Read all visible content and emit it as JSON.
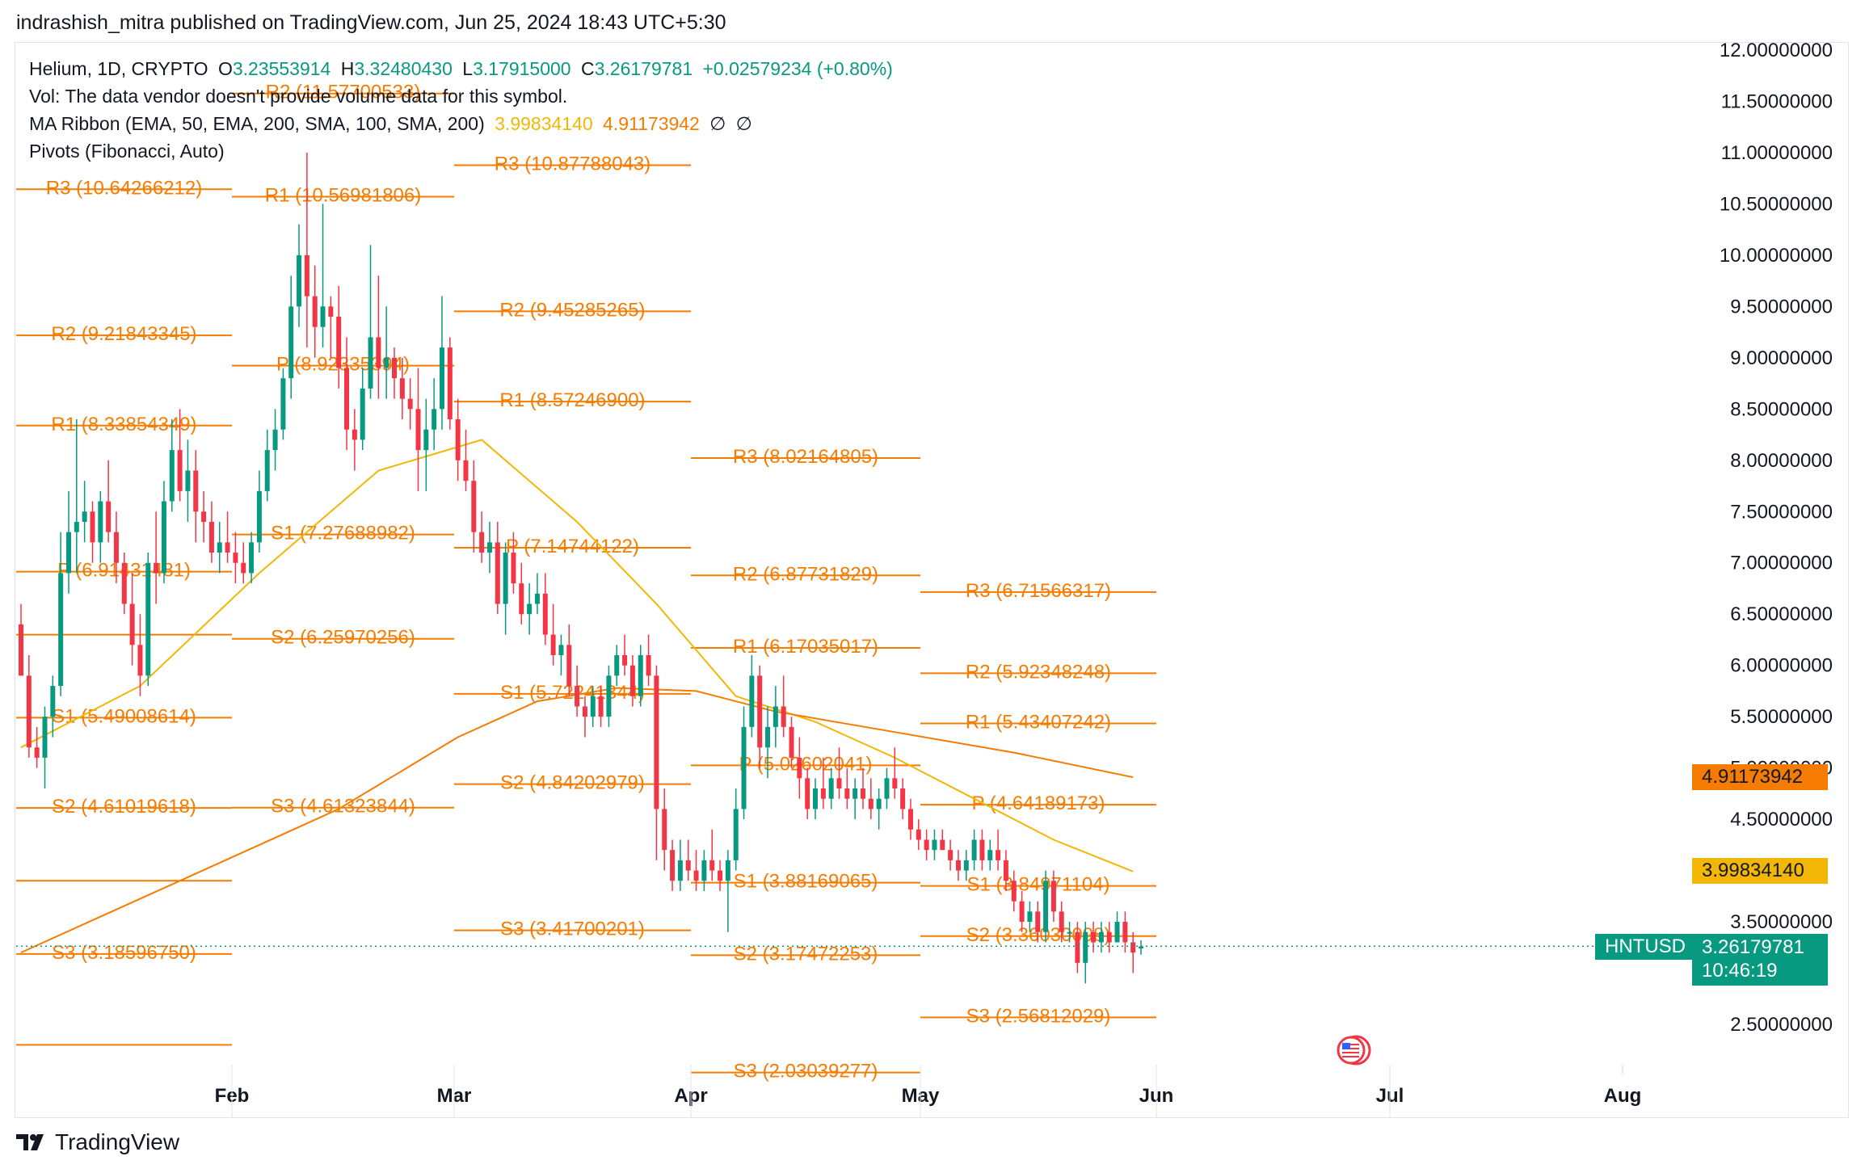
{
  "publisher_line": "indrashish_mitra published on TradingView.com, Jun 25, 2024 18:43 UTC+5:30",
  "legend": {
    "symbol": "Helium, 1D, CRYPTO",
    "o_label": "O",
    "o_value": "3.23553914",
    "h_label": "H",
    "h_value": "3.32480430",
    "l_label": "L",
    "l_value": "3.17915000",
    "c_label": "C",
    "c_value": "3.26179781",
    "change": "+0.02579234 (+0.80%)",
    "vol_note": "Vol: The data vendor doesn't provide volume data for this symbol.",
    "ma_ribbon": "MA Ribbon (EMA, 50, EMA, 200, SMA, 100, SMA, 200)",
    "ma_value_1": "3.99834140",
    "ma_value_2": "4.91173942",
    "ma_null_1": "∅",
    "ma_null_2": "∅",
    "pivots": "Pivots (Fibonacci, Auto)"
  },
  "footer_brand": "TradingView",
  "colors": {
    "up": "#089981",
    "down": "#f23645",
    "pivot": "#f57c00",
    "ema50": "#f2b705",
    "ema200": "#f57c00"
  },
  "tags": {
    "ema200_value": "4.91173942",
    "ema50_value": "3.99834140",
    "symbol": "HNTUSD",
    "last_price": "3.26179781",
    "countdown": "10:46:19",
    "partial_tick": "5.00000000"
  },
  "chart_data": {
    "type": "candlestick",
    "title": "Helium, 1D, CRYPTO",
    "y_axis": {
      "ticks": [
        "2.50000000",
        "3.50000000",
        "4.50000000",
        "5.50000000",
        "6.00000000",
        "6.50000000",
        "7.00000000",
        "7.50000000",
        "8.00000000",
        "8.50000000",
        "9.00000000",
        "9.50000000",
        "10.00000000",
        "10.50000000",
        "11.00000000",
        "11.50000000",
        "12.00000000"
      ],
      "range": [
        2.1,
        12.05
      ]
    },
    "x_axis": {
      "ticks": [
        "Feb",
        "Mar",
        "Apr",
        "May",
        "Jun",
        "Jul",
        "Aug"
      ]
    },
    "grid": false,
    "ohlc": [
      [
        6.4,
        6.6,
        5.9,
        5.9
      ],
      [
        5.9,
        6.1,
        5.1,
        5.2
      ],
      [
        5.2,
        5.4,
        5.0,
        5.1
      ],
      [
        5.1,
        5.6,
        4.8,
        5.5
      ],
      [
        5.5,
        5.9,
        5.3,
        5.8
      ],
      [
        5.8,
        7.3,
        5.7,
        6.9
      ],
      [
        6.9,
        7.7,
        6.7,
        7.3
      ],
      [
        7.3,
        8.4,
        6.9,
        7.4
      ],
      [
        7.4,
        7.8,
        7.2,
        7.5
      ],
      [
        7.5,
        7.6,
        7.0,
        7.2
      ],
      [
        7.2,
        7.7,
        7.0,
        7.6
      ],
      [
        7.6,
        8.0,
        7.2,
        7.3
      ],
      [
        7.3,
        7.5,
        6.8,
        7.0
      ],
      [
        7.0,
        7.1,
        6.5,
        6.6
      ],
      [
        6.6,
        6.9,
        6.0,
        6.2
      ],
      [
        6.2,
        6.5,
        5.7,
        5.9
      ],
      [
        5.9,
        7.1,
        5.8,
        7.0
      ],
      [
        7.0,
        7.5,
        6.6,
        6.9
      ],
      [
        6.9,
        7.8,
        6.8,
        7.6
      ],
      [
        7.6,
        8.4,
        7.5,
        8.1
      ],
      [
        8.1,
        8.5,
        7.6,
        7.7
      ],
      [
        7.7,
        8.2,
        7.4,
        7.9
      ],
      [
        7.9,
        8.1,
        7.2,
        7.5
      ],
      [
        7.5,
        7.7,
        7.2,
        7.4
      ],
      [
        7.4,
        7.6,
        7.0,
        7.1
      ],
      [
        7.1,
        7.4,
        6.9,
        7.2
      ],
      [
        7.2,
        7.5,
        7.0,
        7.1
      ],
      [
        7.1,
        7.3,
        6.8,
        7.0
      ],
      [
        7.0,
        7.2,
        6.8,
        6.9
      ],
      [
        6.9,
        7.3,
        6.8,
        7.2
      ],
      [
        7.2,
        7.9,
        7.1,
        7.7
      ],
      [
        7.7,
        8.3,
        7.6,
        8.1
      ],
      [
        8.1,
        8.5,
        7.9,
        8.3
      ],
      [
        8.3,
        8.9,
        8.2,
        8.8
      ],
      [
        8.8,
        9.8,
        8.6,
        9.5
      ],
      [
        9.5,
        10.3,
        9.3,
        10.0
      ],
      [
        10.0,
        11.0,
        9.1,
        9.6
      ],
      [
        9.6,
        9.9,
        9.0,
        9.3
      ],
      [
        9.3,
        10.5,
        9.1,
        9.5
      ],
      [
        9.5,
        9.6,
        9.0,
        9.4
      ],
      [
        9.4,
        9.7,
        8.7,
        8.9
      ],
      [
        8.9,
        9.2,
        8.1,
        8.3
      ],
      [
        8.3,
        8.5,
        7.9,
        8.2
      ],
      [
        8.2,
        8.9,
        8.1,
        8.7
      ],
      [
        8.7,
        10.1,
        8.6,
        9.2
      ],
      [
        9.2,
        9.8,
        8.6,
        8.9
      ],
      [
        8.9,
        9.5,
        8.6,
        9.0
      ],
      [
        9.0,
        9.1,
        8.6,
        8.8
      ],
      [
        8.8,
        9.0,
        8.4,
        8.6
      ],
      [
        8.6,
        8.8,
        8.3,
        8.5
      ],
      [
        8.5,
        8.9,
        7.7,
        8.1
      ],
      [
        8.1,
        8.6,
        7.7,
        8.3
      ],
      [
        8.3,
        8.8,
        8.1,
        8.5
      ],
      [
        8.5,
        9.6,
        8.3,
        9.1
      ],
      [
        9.1,
        9.2,
        8.3,
        8.4
      ],
      [
        8.4,
        8.6,
        7.8,
        8.0
      ],
      [
        8.0,
        8.3,
        7.7,
        7.8
      ],
      [
        7.8,
        8.0,
        7.1,
        7.3
      ],
      [
        7.3,
        7.5,
        7.0,
        7.1
      ],
      [
        7.1,
        7.4,
        6.9,
        7.2
      ],
      [
        7.2,
        7.4,
        6.5,
        6.6
      ],
      [
        6.6,
        7.2,
        6.3,
        7.1
      ],
      [
        7.1,
        7.3,
        6.7,
        6.8
      ],
      [
        6.8,
        7.0,
        6.4,
        6.5
      ],
      [
        6.5,
        6.8,
        6.3,
        6.6
      ],
      [
        6.6,
        6.9,
        6.5,
        6.7
      ],
      [
        6.7,
        6.9,
        6.2,
        6.3
      ],
      [
        6.3,
        6.6,
        6.0,
        6.1
      ],
      [
        6.1,
        6.3,
        5.9,
        6.2
      ],
      [
        6.2,
        6.4,
        5.7,
        5.8
      ],
      [
        5.8,
        6.0,
        5.5,
        5.6
      ],
      [
        5.6,
        5.7,
        5.3,
        5.5
      ],
      [
        5.5,
        5.8,
        5.4,
        5.7
      ],
      [
        5.7,
        5.8,
        5.4,
        5.5
      ],
      [
        5.5,
        6.0,
        5.4,
        5.9
      ],
      [
        5.9,
        6.2,
        5.8,
        6.1
      ],
      [
        6.1,
        6.3,
        5.9,
        6.0
      ],
      [
        6.0,
        6.1,
        5.6,
        5.7
      ],
      [
        5.7,
        6.2,
        5.6,
        6.1
      ],
      [
        6.1,
        6.3,
        5.8,
        5.9
      ],
      [
        5.9,
        6.0,
        4.1,
        4.6
      ],
      [
        4.6,
        4.8,
        4.0,
        4.2
      ],
      [
        4.2,
        4.3,
        3.8,
        3.9
      ],
      [
        3.9,
        4.3,
        3.8,
        4.1
      ],
      [
        4.1,
        4.3,
        3.9,
        4.0
      ],
      [
        4.0,
        4.2,
        3.8,
        3.9
      ],
      [
        3.9,
        4.2,
        3.8,
        4.1
      ],
      [
        4.1,
        4.4,
        3.9,
        4.0
      ],
      [
        4.0,
        4.1,
        3.8,
        3.9
      ],
      [
        3.9,
        4.2,
        3.4,
        4.1
      ],
      [
        4.1,
        4.8,
        4.0,
        4.6
      ],
      [
        4.6,
        5.6,
        4.5,
        5.4
      ],
      [
        5.4,
        6.1,
        5.3,
        5.9
      ],
      [
        5.9,
        6.0,
        5.0,
        5.2
      ],
      [
        5.2,
        5.6,
        4.9,
        5.4
      ],
      [
        5.4,
        5.8,
        5.2,
        5.6
      ],
      [
        5.6,
        5.9,
        5.3,
        5.4
      ],
      [
        5.4,
        5.5,
        5.0,
        5.1
      ],
      [
        5.1,
        5.3,
        4.7,
        4.9
      ],
      [
        4.9,
        5.0,
        4.5,
        4.6
      ],
      [
        4.6,
        4.9,
        4.5,
        4.8
      ],
      [
        4.8,
        5.1,
        4.6,
        4.7
      ],
      [
        4.7,
        5.0,
        4.6,
        4.9
      ],
      [
        4.9,
        5.2,
        4.7,
        4.8
      ],
      [
        4.8,
        5.0,
        4.6,
        4.7
      ],
      [
        4.7,
        4.9,
        4.5,
        4.8
      ],
      [
        4.8,
        5.0,
        4.6,
        4.7
      ],
      [
        4.7,
        4.9,
        4.5,
        4.6
      ],
      [
        4.6,
        4.8,
        4.4,
        4.7
      ],
      [
        4.7,
        5.0,
        4.6,
        4.9
      ],
      [
        4.9,
        5.2,
        4.7,
        4.8
      ],
      [
        4.8,
        4.9,
        4.5,
        4.6
      ],
      [
        4.6,
        4.7,
        4.3,
        4.4
      ],
      [
        4.4,
        4.5,
        4.2,
        4.3
      ],
      [
        4.3,
        4.4,
        4.1,
        4.2
      ],
      [
        4.2,
        4.4,
        4.1,
        4.3
      ],
      [
        4.3,
        4.4,
        4.2,
        4.2
      ],
      [
        4.2,
        4.3,
        4.0,
        4.1
      ],
      [
        4.1,
        4.2,
        3.9,
        4.0
      ],
      [
        4.0,
        4.2,
        3.9,
        4.1
      ],
      [
        4.1,
        4.4,
        4.0,
        4.3
      ],
      [
        4.3,
        4.4,
        4.0,
        4.1
      ],
      [
        4.1,
        4.3,
        4.0,
        4.2
      ],
      [
        4.2,
        4.4,
        4.0,
        4.1
      ],
      [
        4.1,
        4.2,
        3.8,
        3.9
      ],
      [
        3.9,
        4.0,
        3.6,
        3.7
      ],
      [
        3.7,
        3.8,
        3.4,
        3.5
      ],
      [
        3.5,
        3.7,
        3.4,
        3.6
      ],
      [
        3.6,
        3.7,
        3.3,
        3.4
      ],
      [
        3.4,
        4.0,
        3.3,
        3.9
      ],
      [
        3.9,
        4.0,
        3.5,
        3.6
      ],
      [
        3.6,
        3.7,
        3.3,
        3.4
      ],
      [
        3.4,
        3.5,
        3.3,
        3.4
      ],
      [
        3.4,
        3.5,
        3.0,
        3.1
      ],
      [
        3.1,
        3.5,
        2.9,
        3.4
      ],
      [
        3.4,
        3.5,
        3.2,
        3.3
      ],
      [
        3.3,
        3.5,
        3.2,
        3.4
      ],
      [
        3.4,
        3.5,
        3.2,
        3.3
      ],
      [
        3.3,
        3.6,
        3.3,
        3.5
      ],
      [
        3.5,
        3.6,
        3.2,
        3.3
      ],
      [
        3.3,
        3.4,
        3.0,
        3.2
      ],
      [
        3.24,
        3.32,
        3.18,
        3.26
      ]
    ],
    "ema50": [
      [
        0,
        5.2
      ],
      [
        15,
        5.8
      ],
      [
        30,
        6.9
      ],
      [
        45,
        7.9
      ],
      [
        58,
        8.2
      ],
      [
        70,
        7.4
      ],
      [
        80,
        6.6
      ],
      [
        90,
        5.7
      ],
      [
        100,
        5.45
      ],
      [
        110,
        5.1
      ],
      [
        120,
        4.7
      ],
      [
        130,
        4.3
      ],
      [
        140,
        3.99
      ]
    ],
    "ema200": [
      [
        0,
        3.2
      ],
      [
        20,
        3.9
      ],
      [
        40,
        4.6
      ],
      [
        55,
        5.3
      ],
      [
        65,
        5.65
      ],
      [
        75,
        5.78
      ],
      [
        85,
        5.75
      ],
      [
        95,
        5.55
      ],
      [
        110,
        5.35
      ],
      [
        125,
        5.15
      ],
      [
        140,
        4.91
      ]
    ],
    "pivot_sets": [
      {
        "levels": [
          {
            "name": "R3",
            "value": "10.64266212",
            "label": "R3 (10.64266212)"
          },
          {
            "name": "R2",
            "value": "9.21843345",
            "label": "R2 (9.21843345)"
          },
          {
            "name": "R1",
            "value": "8.33854349",
            "label": "R1 (8.33854349)"
          },
          {
            "name": "P",
            "value": "6.91431481",
            "label": "P (6.91431481)"
          },
          {
            "name": "S1",
            "value": "5.49008614",
            "label": "S1 (5.49008614)"
          },
          {
            "name": "S2",
            "value": "4.61019618",
            "label": "S2 (4.61019618)"
          },
          {
            "name": "S3",
            "value": "3.18596750",
            "label": "S3 (3.18596750)"
          }
        ]
      },
      {
        "levels": [
          {
            "name": "R2",
            "value": "11.57700533",
            "label": "R2 (11.57700533)"
          },
          {
            "name": "R1",
            "value": "10.56981806",
            "label": "R1 (10.56981806)"
          },
          {
            "name": "P",
            "value": "8.92335394",
            "label": "P (8.92335394)"
          },
          {
            "name": "S1",
            "value": "7.27688982",
            "label": "S1 (7.27688982)"
          },
          {
            "name": "S2",
            "value": "6.25970256",
            "label": "S2 (6.25970256)"
          },
          {
            "name": "S3",
            "value": "4.61323844",
            "label": "S3 (4.61323844)"
          }
        ]
      },
      {
        "levels": [
          {
            "name": "R3",
            "value": "10.87788043",
            "label": "R3 (10.87788043)"
          },
          {
            "name": "R2",
            "value": "9.45285265",
            "label": "R2 (9.45285265)"
          },
          {
            "name": "R1",
            "value": "8.57246900",
            "label": "R1 (8.57246900)"
          },
          {
            "name": "P",
            "value": "7.14744122",
            "label": "P (7.14744122)"
          },
          {
            "name": "S1",
            "value": "5.72241344",
            "label": "S1 (5.72241344)"
          },
          {
            "name": "S2",
            "value": "4.84202979",
            "label": "S2 (4.84202979)"
          },
          {
            "name": "S3",
            "value": "3.41700201",
            "label": "S3 (3.41700201)"
          }
        ]
      },
      {
        "levels": [
          {
            "name": "R3",
            "value": "8.02164805",
            "label": "R3 (8.02164805)"
          },
          {
            "name": "R2",
            "value": "6.87731829",
            "label": "R2 (6.87731829)"
          },
          {
            "name": "R1",
            "value": "6.17035017",
            "label": "R1 (6.17035017)"
          },
          {
            "name": "P",
            "value": "5.02602041",
            "label": "P (5.02602041)"
          },
          {
            "name": "S1",
            "value": "3.88169065",
            "label": "S1 (3.88169065)"
          },
          {
            "name": "S2",
            "value": "3.17472253",
            "label": "S2 (3.17472253)"
          },
          {
            "name": "S3",
            "value": "2.03039277",
            "label": "S3 (2.03039277)"
          }
        ]
      },
      {
        "levels": [
          {
            "name": "R3",
            "value": "6.71566317",
            "label": "R3 (6.71566317)"
          },
          {
            "name": "R2",
            "value": "5.92348248",
            "label": "R2 (5.92348248)"
          },
          {
            "name": "R1",
            "value": "5.43407242",
            "label": "R1 (5.43407242)"
          },
          {
            "name": "P",
            "value": "4.64189173",
            "label": "P (4.64189173)"
          },
          {
            "name": "S1",
            "value": "3.84971104",
            "label": "S1 (3.84971104)"
          },
          {
            "name": "S2",
            "value": "3.36030098",
            "label": "S2 (3.36030098)"
          },
          {
            "name": "S3",
            "value": "2.56812029",
            "label": "S3 (2.56812029)"
          }
        ]
      }
    ]
  }
}
